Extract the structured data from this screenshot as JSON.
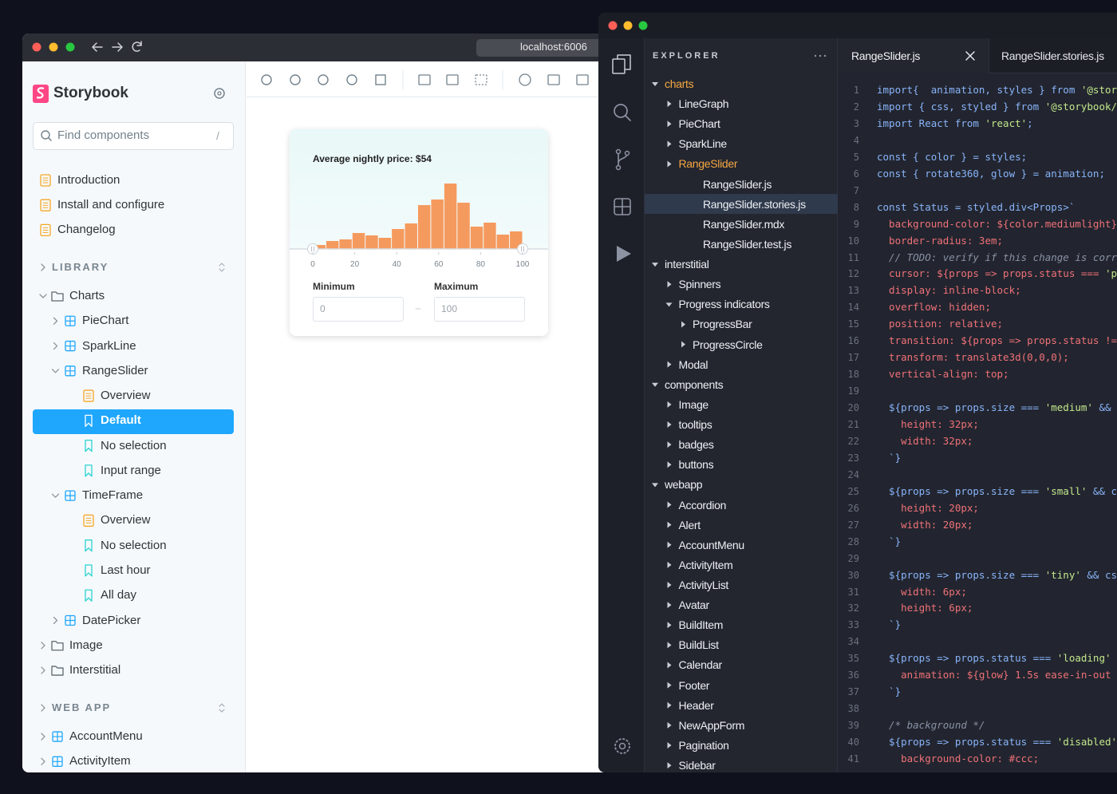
{
  "browser": {
    "url": "localhost:6006"
  },
  "storybook": {
    "brand": "Storybook",
    "search_placeholder": "Find components",
    "search_shortcut": "/",
    "docs": [
      "Introduction",
      "Install and configure",
      "Changelog"
    ],
    "sections": [
      {
        "title": "LIBRARY",
        "items": [
          {
            "label": "Charts",
            "icon": "folder",
            "level": 0,
            "arrow": "open"
          },
          {
            "label": "PieChart",
            "icon": "component",
            "level": 1,
            "arrow": "closed"
          },
          {
            "label": "SparkLine",
            "icon": "component",
            "level": 1,
            "arrow": "closed"
          },
          {
            "label": "RangeSlider",
            "icon": "component",
            "level": 1,
            "arrow": "open"
          },
          {
            "label": "Overview",
            "icon": "doc",
            "level": 2
          },
          {
            "label": "Default",
            "icon": "story",
            "level": 2,
            "selected": true
          },
          {
            "label": "No selection",
            "icon": "story",
            "level": 2
          },
          {
            "label": "Input range",
            "icon": "story",
            "level": 2
          },
          {
            "label": "TimeFrame",
            "icon": "component",
            "level": 1,
            "arrow": "open"
          },
          {
            "label": "Overview",
            "icon": "doc",
            "level": 2
          },
          {
            "label": "No selection",
            "icon": "story",
            "level": 2
          },
          {
            "label": "Last hour",
            "icon": "story",
            "level": 2
          },
          {
            "label": "All day",
            "icon": "story",
            "level": 2
          },
          {
            "label": "DatePicker",
            "icon": "component",
            "level": 1,
            "arrow": "closed"
          },
          {
            "label": "Image",
            "icon": "folder",
            "level": 0,
            "arrow": "closed"
          },
          {
            "label": "Interstitial",
            "icon": "folder",
            "level": 0,
            "arrow": "closed"
          }
        ]
      },
      {
        "title": "WEB APP",
        "items": [
          {
            "label": "AccountMenu",
            "icon": "component",
            "level": 0,
            "arrow": "closed"
          },
          {
            "label": "ActivityItem",
            "icon": "component",
            "level": 0,
            "arrow": "closed"
          }
        ]
      }
    ]
  },
  "chart_data": {
    "type": "histogram",
    "title": "Average nightly price: $54",
    "bins": [
      0,
      6.25,
      12.5,
      18.75,
      25,
      31.25,
      37.5,
      43.75,
      50,
      56.25,
      62.5,
      68.75,
      75,
      81.25,
      87.5,
      93.75,
      100
    ],
    "values": [
      5,
      10,
      12,
      20,
      17,
      14,
      25,
      32,
      55,
      62,
      82,
      58,
      28,
      33,
      18,
      22
    ],
    "color": "#f59a5e",
    "xlim": [
      0,
      100
    ],
    "xticks": [
      0,
      20,
      40,
      60,
      80,
      100
    ],
    "ylim": [
      0,
      100
    ]
  },
  "range_inputs": {
    "min_label": "Minimum",
    "max_label": "Maximum",
    "min_value": 0,
    "max_value": 100
  },
  "editor": {
    "explorer_title": "EXPLORER",
    "tabs": [
      {
        "label": "RangeSlider.js",
        "active": true
      },
      {
        "label": "RangeSlider.stories.js"
      }
    ],
    "tree": [
      {
        "label": "charts",
        "level": 0,
        "arrow": "open",
        "highlight": true
      },
      {
        "label": "LineGraph",
        "level": 1,
        "arrow": "closed"
      },
      {
        "label": "PieChart",
        "level": 1,
        "arrow": "closed"
      },
      {
        "label": "SparkLine",
        "level": 1,
        "arrow": "closed"
      },
      {
        "label": "RangeSlider",
        "level": 1,
        "arrow": "closed",
        "highlight": true
      },
      {
        "label": "RangeSlider.js",
        "level": 2
      },
      {
        "label": "RangeSlider.stories.js",
        "level": 2,
        "selected": true
      },
      {
        "label": "RangeSlider.mdx",
        "level": 2
      },
      {
        "label": "RangeSlider.test.js",
        "level": 2
      },
      {
        "label": "interstitial",
        "level": 0,
        "arrow": "open"
      },
      {
        "label": "Spinners",
        "level": 1,
        "arrow": "closed"
      },
      {
        "label": "Progress indicators",
        "level": 1,
        "arrow": "open"
      },
      {
        "label": "ProgressBar",
        "level": 2,
        "arrow": "closed"
      },
      {
        "label": "ProgressCircle",
        "level": 2,
        "arrow": "closed"
      },
      {
        "label": "Modal",
        "level": 1,
        "arrow": "closed"
      },
      {
        "label": "components",
        "level": 0,
        "arrow": "open"
      },
      {
        "label": "Image",
        "level": 1,
        "arrow": "closed"
      },
      {
        "label": "tooltips",
        "level": 1,
        "arrow": "closed"
      },
      {
        "label": "badges",
        "level": 1,
        "arrow": "closed"
      },
      {
        "label": "buttons",
        "level": 1,
        "arrow": "closed"
      },
      {
        "label": "webapp",
        "level": 0,
        "arrow": "open"
      },
      {
        "label": "Accordion",
        "level": 1,
        "arrow": "closed"
      },
      {
        "label": "Alert",
        "level": 1,
        "arrow": "closed"
      },
      {
        "label": "AccountMenu",
        "level": 1,
        "arrow": "closed"
      },
      {
        "label": "ActivityItem",
        "level": 1,
        "arrow": "closed"
      },
      {
        "label": "ActivityList",
        "level": 1,
        "arrow": "closed"
      },
      {
        "label": "Avatar",
        "level": 1,
        "arrow": "closed"
      },
      {
        "label": "BuildItem",
        "level": 1,
        "arrow": "closed"
      },
      {
        "label": "BuildList",
        "level": 1,
        "arrow": "closed"
      },
      {
        "label": "Calendar",
        "level": 1,
        "arrow": "closed"
      },
      {
        "label": "Footer",
        "level": 1,
        "arrow": "closed"
      },
      {
        "label": "Header",
        "level": 1,
        "arrow": "closed"
      },
      {
        "label": "NewAppForm",
        "level": 1,
        "arrow": "closed"
      },
      {
        "label": "Pagination",
        "level": 1,
        "arrow": "closed"
      },
      {
        "label": "Sidebar",
        "level": 1,
        "arrow": "closed"
      }
    ],
    "lines": [
      {
        "n": 1,
        "text": "import{  animation, styles } from '@stor"
      },
      {
        "n": 2,
        "text": "import { css, styled } from '@storybook/"
      },
      {
        "n": 3,
        "text": "import React from 'react';"
      },
      {
        "n": 4
      },
      {
        "n": 5,
        "text": "const { color } = styles;"
      },
      {
        "n": 6,
        "text": "const { rotate360, glow } = animation;"
      },
      {
        "n": 7
      },
      {
        "n": 8,
        "text": "const Status = styled.div<Props>`"
      },
      {
        "n": 9,
        "text": "  background-color: ${color.mediumlight}"
      },
      {
        "n": 10,
        "text": "  border-radius: 3em;"
      },
      {
        "n": 11,
        "text": "  // TODO: verify if this change is corr"
      },
      {
        "n": 12,
        "text": "  cursor: ${props => props.status === 'p"
      },
      {
        "n": 13,
        "text": "  display: inline-block;"
      },
      {
        "n": 14,
        "text": "  overflow: hidden;"
      },
      {
        "n": 15,
        "text": "  position: relative;"
      },
      {
        "n": 16,
        "text": "  transition: ${props => props.status !="
      },
      {
        "n": 17,
        "text": "  transform: translate3d(0,0,0);"
      },
      {
        "n": 18,
        "text": "  vertical-align: top;"
      },
      {
        "n": 19
      },
      {
        "n": 20,
        "text": "  ${props => props.size === 'medium' &&"
      },
      {
        "n": 21,
        "text": "    height: 32px;"
      },
      {
        "n": 22,
        "text": "    width: 32px;"
      },
      {
        "n": 23,
        "text": "  `}"
      },
      {
        "n": 24
      },
      {
        "n": 25,
        "text": "  ${props => props.size === 'small' && c"
      },
      {
        "n": 26,
        "text": "    height: 20px;"
      },
      {
        "n": 27,
        "text": "    width: 20px;"
      },
      {
        "n": 28,
        "text": "  `}"
      },
      {
        "n": 29
      },
      {
        "n": 30,
        "text": "  ${props => props.size === 'tiny' && cs"
      },
      {
        "n": 31,
        "text": "    width: 6px;"
      },
      {
        "n": 32,
        "text": "    height: 6px;"
      },
      {
        "n": 33,
        "text": "  `}"
      },
      {
        "n": 34
      },
      {
        "n": 35,
        "text": "  ${props => props.status === 'loading'"
      },
      {
        "n": 36,
        "text": "    animation: ${glow} 1.5s ease-in-out"
      },
      {
        "n": 37,
        "text": "  `}"
      },
      {
        "n": 38
      },
      {
        "n": 39,
        "text": "  /* background */"
      },
      {
        "n": 40,
        "text": "  ${props => props.status === 'disabled'"
      },
      {
        "n": 41,
        "text": "    background-color: #ccc;"
      }
    ]
  }
}
